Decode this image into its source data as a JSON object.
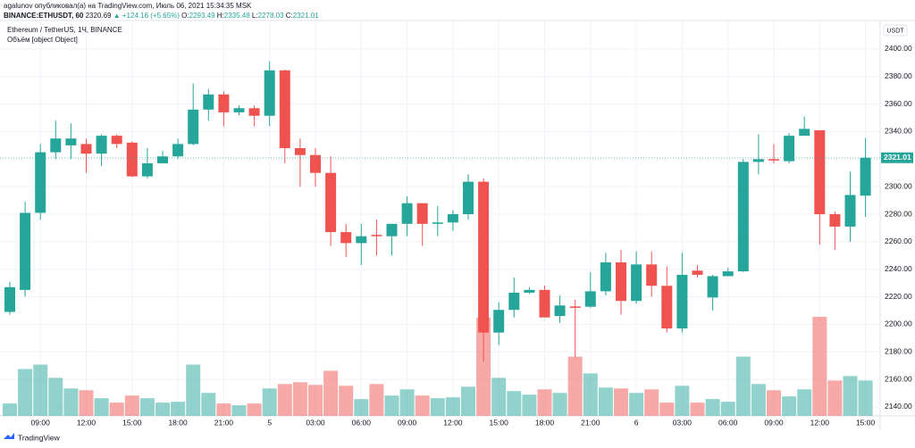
{
  "header": {
    "publisher": "agalunov опубликовал(а) на TradingView.com, Июль 06, 2021 15:34:35 MSK",
    "symbol": "BINANCE:ETHUSDT, 60",
    "price": "2320.69",
    "change": "▲ +124.16 (+5.65%)",
    "quote": [
      {
        "label": "O:",
        "value": "2293.49"
      },
      {
        "label": "H:",
        "value": "2335.48"
      },
      {
        "label": "L:",
        "value": "2278.03"
      },
      {
        "label": "C:",
        "value": "2321.01"
      }
    ]
  },
  "chart_data": {
    "type": "candlestick",
    "title": "Ethereum / TetherUS, 1Ч, BINANCE",
    "volume_title": "Объём [object Object]",
    "currency": "USDT",
    "last_price": 2321.01,
    "up_color": "#26a69a",
    "down_color": "#ef5350",
    "grid": true,
    "categories": [
      null,
      null,
      "09:00",
      null,
      null,
      "12:00",
      null,
      null,
      "15:00",
      null,
      null,
      "18:00",
      null,
      null,
      "21:00",
      null,
      null,
      "5",
      null,
      null,
      "03:00",
      null,
      null,
      "06:00",
      null,
      null,
      "09:00",
      null,
      null,
      "12:00",
      null,
      null,
      "15:00",
      null,
      null,
      "18:00",
      null,
      null,
      "21:00",
      null,
      null,
      "6",
      null,
      null,
      "03:00",
      null,
      null,
      "06:00",
      null,
      null,
      "09:00",
      null,
      null,
      "12:00",
      null,
      null,
      "15:00"
    ],
    "open": [
      2209,
      2225,
      2281,
      2325,
      2330,
      2331,
      2324,
      2337,
      2332,
      2307.5,
      2317,
      2322,
      2331,
      2356,
      2367,
      2354,
      2357,
      2351.5,
      2384.5,
      2328,
      2323,
      2310,
      2267,
      2259,
      2265,
      2264,
      2273,
      2288,
      2273,
      2274,
      2280,
      2303.6,
      2194,
      2210.5,
      2223,
      2225,
      2206,
      2213,
      2212.8,
      2224,
      2245,
      2217,
      2243.5,
      2228,
      2197,
      2239,
      2219.5,
      2235,
      2238.5,
      2318,
      2320,
      2318.5,
      2337,
      2341,
      2280,
      2271,
      2293.49
    ],
    "high": [
      2231,
      2289,
      2331,
      2348,
      2346,
      2335,
      2338,
      2338,
      2333,
      2328,
      2326,
      2335,
      2375,
      2371,
      2369,
      2359,
      2359,
      2391,
      2385,
      2335,
      2328,
      2322,
      2273,
      2273,
      2276,
      2273,
      2293,
      2288,
      2286,
      2283,
      2309,
      2306,
      2216,
      2234,
      2227,
      2228,
      2221,
      2218,
      2238,
      2252,
      2254,
      2253,
      2253,
      2242,
      2252,
      2243,
      2236,
      2241,
      2320,
      2338,
      2331,
      2339,
      2351,
      2341,
      2282,
      2311,
      2335.48
    ],
    "low": [
      2207,
      2220,
      2276,
      2320,
      2320,
      2310,
      2315,
      2328,
      2307,
      2306,
      2317,
      2320,
      2330,
      2348,
      2344,
      2352,
      2344,
      2344,
      2317,
      2300,
      2300,
      2257,
      2249,
      2243,
      2250,
      2250,
      2264,
      2257,
      2264,
      2268,
      2276,
      2173,
      2185,
      2205,
      2222,
      2205,
      2201,
      2176,
      2212,
      2221,
      2207,
      2215,
      2220,
      2194,
      2194,
      2234,
      2210,
      2235,
      2238,
      2309,
      2317,
      2317,
      2337,
      2258,
      2254,
      2260,
      2278.03
    ],
    "close": [
      2227,
      2281,
      2325,
      2335,
      2335,
      2324,
      2337,
      2331,
      2307.5,
      2317,
      2322,
      2331,
      2356,
      2367,
      2354,
      2357,
      2351.5,
      2384.5,
      2328,
      2323,
      2310,
      2267,
      2259,
      2264,
      2264,
      2273,
      2288,
      2273,
      2274,
      2280,
      2303.6,
      2194,
      2210.5,
      2223,
      2225,
      2205,
      2213.7,
      2212,
      2224,
      2245,
      2217,
      2243.5,
      2228,
      2197,
      2236,
      2236,
      2235,
      2238.5,
      2318,
      2320,
      2319,
      2337,
      2342,
      2280,
      2271,
      2294,
      2321.01
    ],
    "volume": [
      14,
      53,
      58,
      43,
      31,
      29,
      20,
      15,
      23,
      20,
      15,
      16,
      58,
      26,
      14,
      12,
      14,
      31,
      36,
      38,
      35,
      51,
      34,
      19,
      36,
      23,
      30,
      23,
      20,
      21,
      33,
      111,
      43,
      28,
      24,
      30,
      26,
      67,
      48,
      32,
      31,
      26,
      30,
      15,
      34,
      15,
      19,
      16,
      67,
      36,
      29,
      22,
      30,
      112,
      40,
      45,
      40
    ],
    "ylim": [
      2133.5,
      2420.7
    ],
    "yticks": [
      {
        "value": 2140,
        "label": "2140.00"
      },
      {
        "value": 2160,
        "label": "2160.00"
      },
      {
        "value": 2180,
        "label": "2180.00"
      },
      {
        "value": 2200,
        "label": "2200.00"
      },
      {
        "value": 2220,
        "label": "2220.00"
      },
      {
        "value": 2240,
        "label": "2240.00"
      },
      {
        "value": 2260,
        "label": "2260.00"
      },
      {
        "value": 2280,
        "label": "2280.00"
      },
      {
        "value": 2300,
        "label": "2300.00"
      },
      {
        "value": 2320,
        "label": "2320.00"
      },
      {
        "value": 2340,
        "label": "2340.00"
      },
      {
        "value": 2360,
        "label": "2360.00"
      },
      {
        "value": 2380,
        "label": "2380.00"
      },
      {
        "value": 2400,
        "label": "2400.00"
      }
    ]
  },
  "footer": {
    "brand": "TradingView"
  }
}
